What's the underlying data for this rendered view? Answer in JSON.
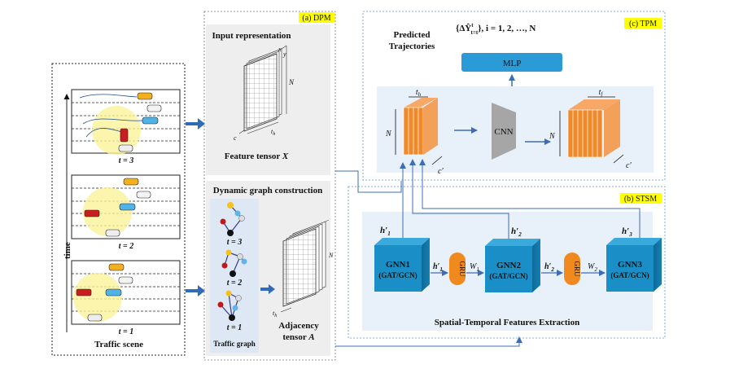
{
  "scene": {
    "caption": "Traffic scene",
    "axis_label": "time",
    "frames": [
      {
        "label": "t = 3"
      },
      {
        "label": "t = 2"
      },
      {
        "label": "t = 1"
      }
    ]
  },
  "dpm": {
    "tag": "(a) DPM",
    "input_title": "Input representation",
    "tensor_axes": {
      "x": "x",
      "y": "y",
      "n": "N",
      "c": "c",
      "th": "t"
    },
    "th_sub": "h",
    "feature_label": "Feature tensor ",
    "feature_var": "X",
    "graph_title": "Dynamic graph construction",
    "graph_steps": [
      "t = 3",
      "t = 2",
      "t = 1"
    ],
    "graph_caption": "Traffic graph",
    "adj_axes": {
      "n": "N",
      "th": "t"
    },
    "adj_label_1": "Adjacency",
    "adj_label_2": "tensor ",
    "adj_var": "A"
  },
  "tpm": {
    "tag": "(c) TPM",
    "pred_1": "Predicted",
    "pred_2": "Trajectories",
    "formula": "{ΔŶ",
    "formula_rest": "}",
    "formula_sup": "t",
    "formula_sub": "t=t",
    "formula_tail": ", i = 1, 2, …, N",
    "mlp": "MLP",
    "cnn": "CNN",
    "th": "t",
    "th_sub": "h",
    "tf": "t",
    "tf_sub": "f",
    "n_left": "N",
    "n_right": "N",
    "c_left": "c′",
    "c_right": "c′"
  },
  "stsm": {
    "tag": "(b) STSM",
    "gnn": [
      {
        "name": "GNN1",
        "sub": "(GAT/GCN)",
        "h": "h′",
        "h_sub": "1"
      },
      {
        "name": "GNN2",
        "sub": "(GAT/GCN)",
        "h": "h′",
        "h_sub": "2"
      },
      {
        "name": "GNN3",
        "sub": "(GAT/GCN)",
        "h": "h′",
        "h_sub": "3"
      }
    ],
    "gru": [
      "GRU",
      "GRU"
    ],
    "w1": "W",
    "w1_sub": "1",
    "w2": "W",
    "w2_sub": "2",
    "h1_mid": "h′",
    "h1_mid_sub": "1",
    "h2_mid": "h′",
    "h2_mid_sub": "2",
    "caption": "Spatial-Temporal Features Extraction"
  },
  "colors": {
    "accent_yellow": "#ffff00",
    "gnn_blue": "#1a8fc7",
    "gru_orange": "#f08a1e",
    "panel_blue": "#e8f0f9",
    "mlp_blue": "#2b9bd8",
    "arrow_blue": "#3d6db5"
  }
}
